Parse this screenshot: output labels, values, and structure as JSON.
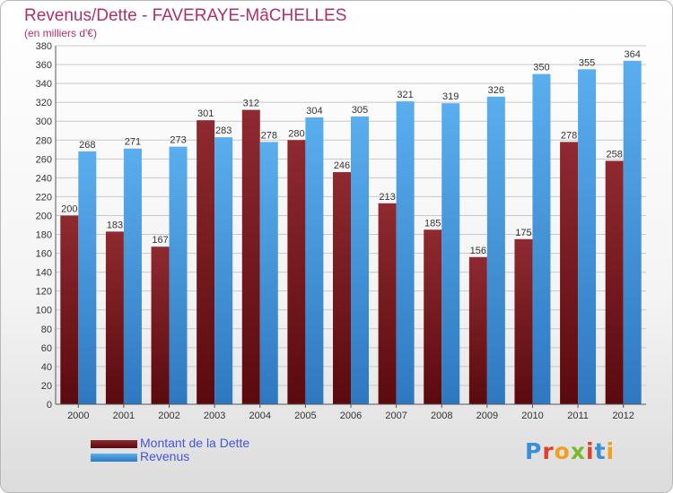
{
  "header": {
    "title": "Revenus/Dette - FAVERAYE-MâCHELLES",
    "subtitle": "(en milliers d'€)"
  },
  "colors": {
    "title": "#b0306a",
    "debt": "#8b1e24",
    "revenue": "#4a9fe4",
    "legend_text": "#4455dd",
    "grid": "#c8c8c8"
  },
  "chart_data": {
    "type": "bar",
    "title": "Revenus/Dette - FAVERAYE-MâCHELLES",
    "subtitle": "(en milliers d'€)",
    "xlabel": "",
    "ylabel": "",
    "ylim": [
      0,
      380
    ],
    "ytick_step": 20,
    "grid": true,
    "legend_position": "bottom-left",
    "categories": [
      "2000",
      "2001",
      "2002",
      "2003",
      "2004",
      "2005",
      "2006",
      "2007",
      "2008",
      "2009",
      "2010",
      "2011",
      "2012"
    ],
    "series": [
      {
        "name": "Montant de la Dette",
        "color": "#8b1e24",
        "values": [
          200,
          183,
          167,
          301,
          312,
          280,
          246,
          213,
          185,
          156,
          175,
          278,
          258
        ]
      },
      {
        "name": "Revenus",
        "color": "#4a9fe4",
        "values": [
          268,
          271,
          273,
          283,
          278,
          304,
          305,
          321,
          319,
          326,
          350,
          355,
          364
        ]
      }
    ]
  },
  "logo": {
    "letters": [
      {
        "char": "P",
        "color": "#3a8fd8"
      },
      {
        "char": "r",
        "color": "#e0402a"
      },
      {
        "char": "o",
        "color": "#f0a020"
      },
      {
        "char": "x",
        "color": "#7ab830"
      },
      {
        "char": "i",
        "color": "#e0402a"
      },
      {
        "char": "t",
        "color": "#3a8fd8"
      },
      {
        "char": "i",
        "color": "#f0a020"
      }
    ]
  }
}
